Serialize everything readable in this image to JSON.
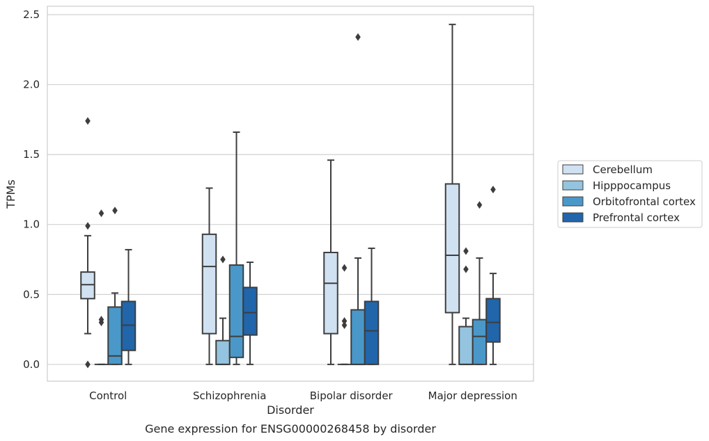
{
  "caption": "Gene expression for ENSG00000268458 by disorder",
  "chart_data": {
    "type": "box",
    "xlabel": "Disorder",
    "ylabel": "TPMs",
    "ylim": [
      -0.12,
      2.56
    ],
    "yticks": [
      "0.0",
      "0.5",
      "1.0",
      "1.5",
      "2.0",
      "2.5"
    ],
    "ytick_values": [
      0,
      0.5,
      1.0,
      1.5,
      2.0,
      2.5
    ],
    "grid": "horizontal",
    "legend_position": "right",
    "categories": [
      "Control",
      "Schizophrenia",
      "Bipolar disorder",
      "Major depression"
    ],
    "series": [
      {
        "name": "Cerebellum",
        "color": "#d0e1f2",
        "boxes": [
          {
            "q1": 0.47,
            "median": 0.57,
            "q3": 0.66,
            "whislo": 0.22,
            "whishi": 0.92,
            "fliers": [
              1.74,
              0.99,
              0.0
            ]
          },
          {
            "q1": 0.22,
            "median": 0.7,
            "q3": 0.93,
            "whislo": 0.0,
            "whishi": 1.26,
            "fliers": []
          },
          {
            "q1": 0.22,
            "median": 0.58,
            "q3": 0.8,
            "whislo": 0.0,
            "whishi": 1.46,
            "fliers": []
          },
          {
            "q1": 0.37,
            "median": 0.78,
            "q3": 1.29,
            "whislo": 0.0,
            "whishi": 2.43,
            "fliers": []
          }
        ]
      },
      {
        "name": "Hipppocampus",
        "color": "#94c4df",
        "boxes": [
          {
            "q1": 0.0,
            "median": 0.0,
            "q3": 0.0,
            "whislo": 0.0,
            "whishi": 0.0,
            "fliers": [
              1.08,
              0.32,
              0.3
            ]
          },
          {
            "q1": 0.0,
            "median": 0.0,
            "q3": 0.17,
            "whislo": 0.0,
            "whishi": 0.33,
            "fliers": [
              0.75
            ]
          },
          {
            "q1": 0.0,
            "median": 0.0,
            "q3": 0.0,
            "whislo": 0.0,
            "whishi": 0.0,
            "fliers": [
              0.69,
              0.31,
              0.28
            ]
          },
          {
            "q1": 0.0,
            "median": 0.0,
            "q3": 0.27,
            "whislo": 0.0,
            "whishi": 0.33,
            "fliers": [
              0.81,
              0.68
            ]
          }
        ]
      },
      {
        "name": "Orbitofrontal cortex",
        "color": "#4a98c9",
        "boxes": [
          {
            "q1": 0.0,
            "median": 0.06,
            "q3": 0.41,
            "whislo": 0.0,
            "whishi": 0.51,
            "fliers": [
              1.1
            ]
          },
          {
            "q1": 0.05,
            "median": 0.2,
            "q3": 0.71,
            "whislo": 0.0,
            "whishi": 1.66,
            "fliers": []
          },
          {
            "q1": 0.0,
            "median": 0.0,
            "q3": 0.39,
            "whislo": 0.0,
            "whishi": 0.76,
            "fliers": [
              2.34
            ]
          },
          {
            "q1": 0.0,
            "median": 0.2,
            "q3": 0.32,
            "whislo": 0.0,
            "whishi": 0.76,
            "fliers": [
              1.14
            ]
          }
        ]
      },
      {
        "name": "Prefrontal cortex",
        "color": "#2165ab",
        "boxes": [
          {
            "q1": 0.1,
            "median": 0.28,
            "q3": 0.45,
            "whislo": 0.0,
            "whishi": 0.82,
            "fliers": []
          },
          {
            "q1": 0.21,
            "median": 0.37,
            "q3": 0.55,
            "whislo": 0.0,
            "whishi": 0.73,
            "fliers": []
          },
          {
            "q1": 0.0,
            "median": 0.24,
            "q3": 0.45,
            "whislo": 0.0,
            "whishi": 0.83,
            "fliers": []
          },
          {
            "q1": 0.16,
            "median": 0.3,
            "q3": 0.47,
            "whislo": 0.0,
            "whishi": 0.65,
            "fliers": [
              1.25
            ]
          }
        ]
      }
    ]
  }
}
